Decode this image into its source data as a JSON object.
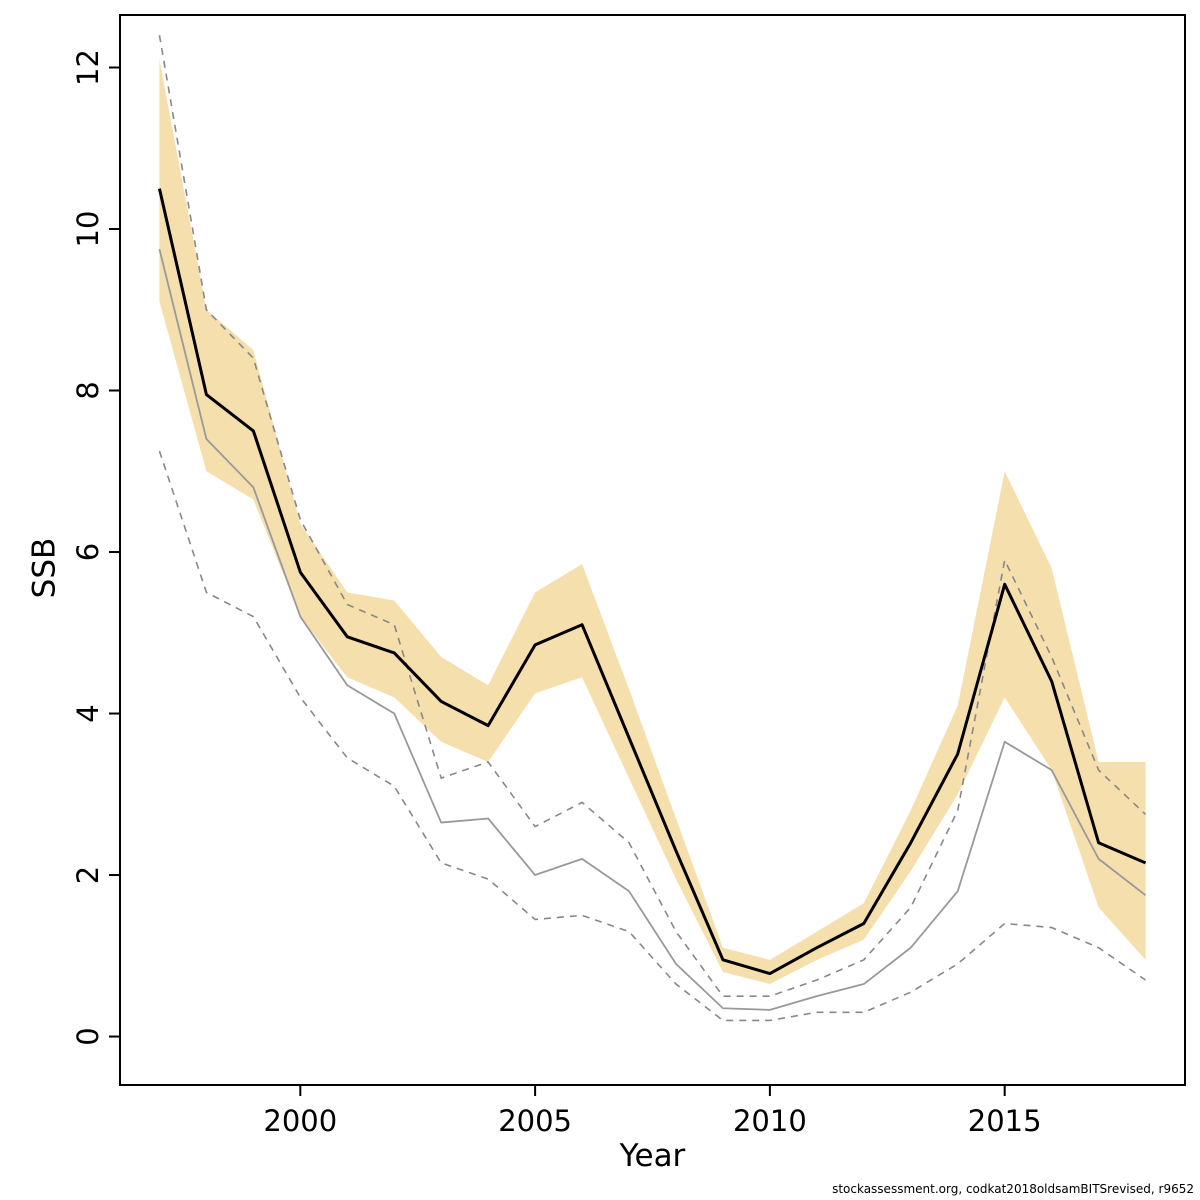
{
  "footer": {
    "text": "stockassessment.org, codkat2018oldsamBITSrevised, r9652"
  },
  "chart_data": {
    "type": "line",
    "title": "",
    "xlabel": "Year",
    "ylabel": "SSB",
    "grid": false,
    "legend": false,
    "xlim": [
      1996.16,
      2018.84
    ],
    "ylim": [
      -0.6,
      12.65
    ],
    "xticks": [
      2000,
      2005,
      2010,
      2015
    ],
    "yticks": [
      0,
      2,
      4,
      6,
      8,
      10,
      12
    ],
    "x": [
      1997,
      1998,
      1999,
      2000,
      2001,
      2002,
      2003,
      2004,
      2005,
      2006,
      2007,
      2008,
      2009,
      2010,
      2011,
      2012,
      2013,
      2014,
      2015,
      2016,
      2017,
      2018
    ],
    "band": {
      "name": "ssb-confidence-band",
      "color": "#F5DFAC",
      "upper": [
        12.1,
        9.0,
        8.5,
        6.35,
        5.5,
        5.4,
        4.7,
        4.35,
        5.5,
        5.85,
        4.3,
        2.7,
        1.1,
        0.95,
        1.3,
        1.65,
        2.8,
        4.1,
        7.0,
        5.8,
        3.4,
        3.4
      ],
      "lower": [
        9.1,
        7.0,
        6.65,
        5.2,
        4.45,
        4.2,
        3.65,
        3.4,
        4.25,
        4.45,
        3.2,
        1.95,
        0.8,
        0.65,
        0.95,
        1.2,
        2.05,
        3.0,
        4.2,
        3.3,
        1.6,
        0.95
      ]
    },
    "series": [
      {
        "name": "comparison-ci-upper",
        "color": "#888888",
        "width": 1.6,
        "dash": "7 6",
        "values": [
          12.4,
          9.0,
          8.4,
          6.4,
          5.35,
          5.1,
          3.2,
          3.4,
          2.6,
          2.9,
          2.4,
          1.3,
          0.5,
          0.5,
          0.7,
          0.95,
          1.6,
          2.8,
          5.9,
          4.7,
          3.3,
          2.75
        ]
      },
      {
        "name": "comparison-ci-lower",
        "color": "#888888",
        "width": 1.6,
        "dash": "7 6",
        "values": [
          7.25,
          5.5,
          5.2,
          4.2,
          3.45,
          3.1,
          2.15,
          1.95,
          1.45,
          1.5,
          1.3,
          0.65,
          0.2,
          0.2,
          0.3,
          0.3,
          0.55,
          0.9,
          1.4,
          1.35,
          1.1,
          0.7
        ]
      },
      {
        "name": "comparison-run",
        "color": "#999999",
        "width": 1.8,
        "dash": "",
        "values": [
          9.75,
          7.4,
          6.8,
          5.2,
          4.35,
          4.0,
          2.65,
          2.7,
          2.0,
          2.2,
          1.8,
          0.9,
          0.35,
          0.33,
          0.5,
          0.65,
          1.1,
          1.8,
          3.65,
          3.3,
          2.2,
          1.75
        ]
      },
      {
        "name": "ssb-estimate",
        "color": "#000000",
        "width": 3,
        "dash": "",
        "values": [
          10.5,
          7.95,
          7.5,
          5.75,
          4.95,
          4.75,
          4.15,
          3.85,
          4.85,
          5.1,
          3.7,
          2.3,
          0.95,
          0.78,
          1.1,
          1.4,
          2.4,
          3.5,
          5.6,
          4.4,
          2.4,
          2.15
        ]
      }
    ]
  }
}
